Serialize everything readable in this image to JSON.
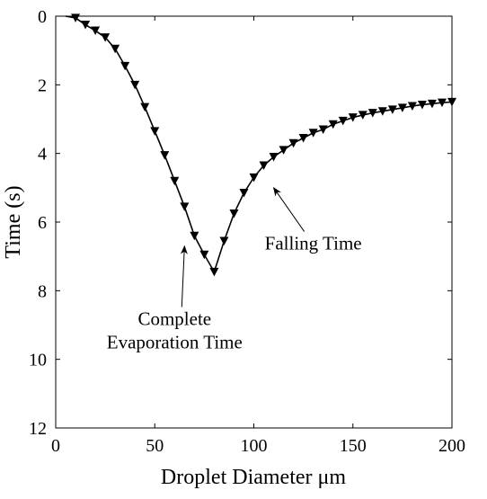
{
  "chart_data": {
    "type": "line",
    "xlabel": "Droplet Diameter μm",
    "ylabel": "Time (s)",
    "xlim": [
      0,
      200
    ],
    "ylim": [
      0,
      12
    ],
    "y_axis_reversed": true,
    "grid": false,
    "x_ticks": [
      0,
      50,
      100,
      150,
      200
    ],
    "y_ticks": [
      0,
      2,
      4,
      6,
      8,
      10,
      12
    ],
    "line_color": "#000000",
    "marker": "down-triangle",
    "series": [
      {
        "x": [
          5,
          10,
          15,
          20,
          25,
          30,
          35,
          40,
          45,
          50,
          55,
          60,
          65,
          70,
          75,
          80,
          85,
          90,
          95,
          100,
          105,
          110,
          115,
          120,
          125,
          130,
          135,
          140,
          145,
          150,
          155,
          160,
          165,
          170,
          175,
          180,
          185,
          190,
          195,
          200
        ],
        "y": [
          0.0,
          0.05,
          0.25,
          0.42,
          0.62,
          0.95,
          1.45,
          2.0,
          2.65,
          3.35,
          4.05,
          4.8,
          5.55,
          6.4,
          6.95,
          7.45,
          6.55,
          5.75,
          5.15,
          4.7,
          4.35,
          4.1,
          3.9,
          3.7,
          3.55,
          3.4,
          3.3,
          3.15,
          3.05,
          2.95,
          2.88,
          2.82,
          2.77,
          2.72,
          2.67,
          2.62,
          2.58,
          2.55,
          2.52,
          2.5
        ]
      }
    ],
    "annotations": [
      {
        "lines": [
          "Falling Time"
        ],
        "x": 130,
        "y": 6.8,
        "arrow_to": [
          110,
          5.0
        ]
      },
      {
        "lines": [
          "Complete",
          "Evaporation Time"
        ],
        "x": 60,
        "y": 9.0,
        "arrow_to": [
          65,
          6.7
        ]
      }
    ]
  }
}
